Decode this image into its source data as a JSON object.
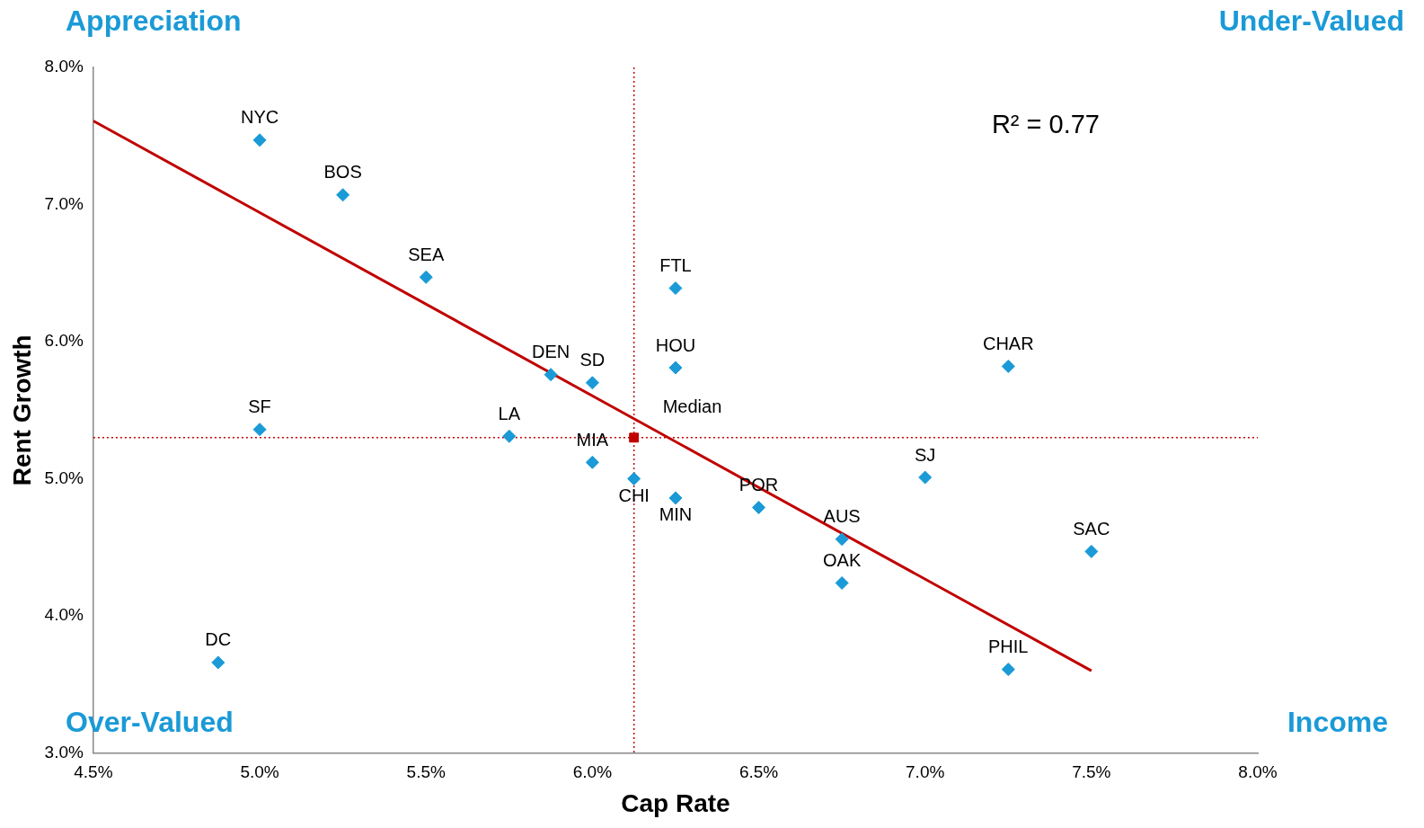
{
  "chart_data": {
    "type": "scatter",
    "xlabel": "Cap Rate",
    "ylabel": "Rent Growth",
    "xlim": [
      4.5,
      8.0
    ],
    "xticks": [
      {
        "value": 4.5,
        "label": "4.5%"
      },
      {
        "value": 5.0,
        "label": "5.0%"
      },
      {
        "value": 5.5,
        "label": "5.5%"
      },
      {
        "value": 6.0,
        "label": "6.0%"
      },
      {
        "value": 6.5,
        "label": "6.5%"
      },
      {
        "value": 7.0,
        "label": "7.0%"
      },
      {
        "value": 7.5,
        "label": "7.5%"
      },
      {
        "value": 8.0,
        "label": "8.0%"
      }
    ],
    "ylim": [
      3.0,
      8.0
    ],
    "yticks": [
      {
        "value": 3.0,
        "label": "3.0%"
      },
      {
        "value": 4.0,
        "label": "4.0%"
      },
      {
        "value": 5.0,
        "label": "5.0%"
      },
      {
        "value": 6.0,
        "label": "6.0%"
      },
      {
        "value": 7.0,
        "label": "7.0%"
      },
      {
        "value": 8.0,
        "label": "8.0%"
      }
    ],
    "grid": false,
    "legend": false,
    "marker": "diamond",
    "series": [
      {
        "name": "NYC",
        "color": "#1a9ad6",
        "x": [
          5.0
        ],
        "values": [
          7.47
        ]
      },
      {
        "name": "BOS",
        "color": "#1a9ad6",
        "x": [
          5.25
        ],
        "values": [
          7.07
        ]
      },
      {
        "name": "SEA",
        "color": "#1a9ad6",
        "x": [
          5.5
        ],
        "values": [
          6.47
        ]
      },
      {
        "name": "FTL",
        "color": "#1a9ad6",
        "x": [
          6.25
        ],
        "values": [
          6.39
        ]
      },
      {
        "name": "HOU",
        "color": "#1a9ad6",
        "x": [
          6.25
        ],
        "values": [
          5.81
        ]
      },
      {
        "name": "CHAR",
        "color": "#1a9ad6",
        "x": [
          7.25
        ],
        "values": [
          5.82
        ]
      },
      {
        "name": "DEN",
        "color": "#1a9ad6",
        "x": [
          5.875
        ],
        "values": [
          5.76
        ]
      },
      {
        "name": "SD",
        "color": "#1a9ad6",
        "x": [
          6.0
        ],
        "values": [
          5.7
        ]
      },
      {
        "name": "SF",
        "color": "#1a9ad6",
        "x": [
          5.0
        ],
        "values": [
          5.36
        ]
      },
      {
        "name": "LA",
        "color": "#1a9ad6",
        "x": [
          5.75
        ],
        "values": [
          5.31
        ]
      },
      {
        "name": "MIA",
        "color": "#1a9ad6",
        "x": [
          6.0
        ],
        "values": [
          5.12
        ]
      },
      {
        "name": "CHI",
        "color": "#1a9ad6",
        "x": [
          6.125
        ],
        "values": [
          5.0
        ]
      },
      {
        "name": "MIN",
        "color": "#1a9ad6",
        "x": [
          6.25
        ],
        "values": [
          4.86
        ]
      },
      {
        "name": "POR",
        "color": "#1a9ad6",
        "x": [
          6.5
        ],
        "values": [
          4.79
        ]
      },
      {
        "name": "SJ",
        "color": "#1a9ad6",
        "x": [
          7.0
        ],
        "values": [
          5.01
        ]
      },
      {
        "name": "AUS",
        "color": "#1a9ad6",
        "x": [
          6.75
        ],
        "values": [
          4.56
        ]
      },
      {
        "name": "OAK",
        "color": "#1a9ad6",
        "x": [
          6.75
        ],
        "values": [
          4.24
        ]
      },
      {
        "name": "SAC",
        "color": "#1a9ad6",
        "x": [
          7.5
        ],
        "values": [
          4.47
        ]
      },
      {
        "name": "DC",
        "color": "#1a9ad6",
        "x": [
          4.875
        ],
        "values": [
          3.66
        ]
      },
      {
        "name": "PHIL",
        "color": "#1a9ad6",
        "x": [
          7.25
        ],
        "values": [
          3.61
        ]
      },
      {
        "name": "Median",
        "color": "#c00000",
        "marker": "square",
        "x": [
          6.125
        ],
        "values": [
          5.3
        ]
      },
      {
        "type": "line",
        "color": "#c00000",
        "marker": "none",
        "x": [
          4.5,
          7.5
        ],
        "values": [
          7.61,
          3.6
        ]
      }
    ],
    "ref_lines": [
      {
        "axis": "x",
        "value": 6.125,
        "color": "#c00000",
        "line_style": "dotted"
      },
      {
        "axis": "y",
        "value": 5.3,
        "color": "#c00000",
        "line_style": "dotted"
      }
    ],
    "annotations": [
      "Appreciation",
      "Under-Valued",
      "Over-Valued",
      "Income",
      "R² = 0.77"
    ]
  }
}
